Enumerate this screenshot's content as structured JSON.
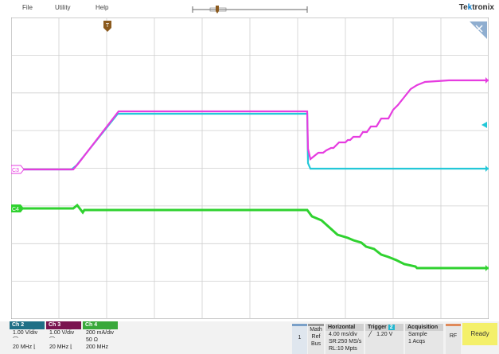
{
  "menu": {
    "file": "File",
    "utility": "Utility",
    "help": "Help"
  },
  "brand": {
    "prefix": "Te",
    "mark": "k",
    "suffix": "tronix"
  },
  "channels": {
    "ch2": {
      "title": "Ch 2",
      "scale": "1.00 V/div",
      "bw": "20 MHz",
      "color": "#1f8fa6"
    },
    "ch3": {
      "title": "Ch 3",
      "scale": "1.00 V/div",
      "bw": "20 MHz",
      "color": "#b0156e"
    },
    "ch4": {
      "title": "Ch 4",
      "scale": "200 mA/div",
      "impedance": "50 Ω",
      "bw": "200 MHz",
      "color": "#33b233"
    }
  },
  "trace_labels": {
    "c3": "C3",
    "c4": "C4"
  },
  "math_ref_bus": {
    "line1": "Math",
    "line2": "Ref",
    "line3": "Bus"
  },
  "horizontal": {
    "title": "Horizontal",
    "scale": "4.00 ms/div",
    "sample_rate": "SR:250 MS/s",
    "record_length": "RL:10 Mpts"
  },
  "trigger": {
    "title": "Trigger",
    "source": "2",
    "level": "1.20 V"
  },
  "acquisition": {
    "title": "Acquisition",
    "mode": "Sample",
    "count": "1 Acqs"
  },
  "rf": "RF",
  "status": "Ready",
  "colors": {
    "ch2": "#23c8d8",
    "ch3": "#e63ce0",
    "ch4": "#2fd22f",
    "grid": "#c8c8c8"
  }
}
